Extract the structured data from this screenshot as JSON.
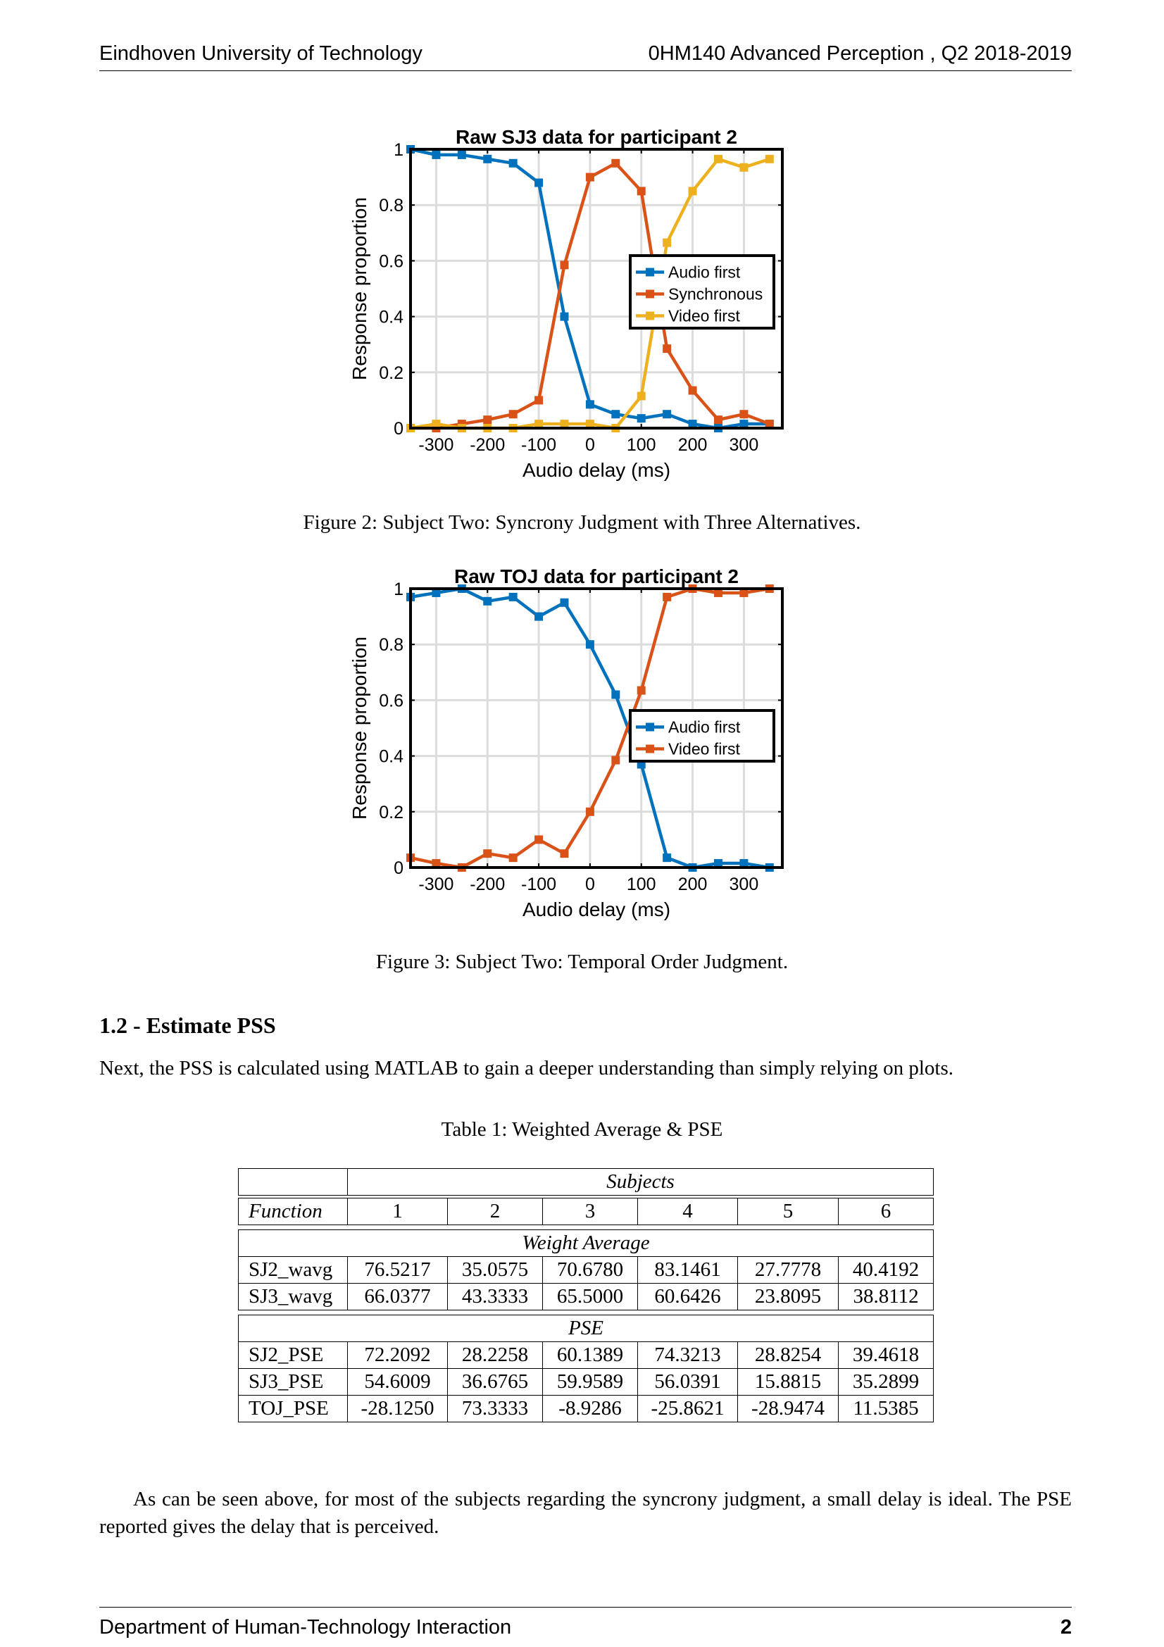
{
  "header": {
    "left": "Eindhoven University of Technology",
    "right": "0HM140 Advanced Perception , Q2 2018-2019"
  },
  "footer": {
    "left": "Department of Human-Technology Interaction",
    "page": "2"
  },
  "figure2_caption": "Figure 2: Subject Two: Syncrony Judgment with Three Alternatives.",
  "figure3_caption": "Figure 3: Subject Two: Temporal Order Judgment.",
  "section": {
    "heading": "1.2 - Estimate PSS",
    "intro": "Next, the PSS is calculated using MATLAB to gain a deeper understanding than simply relying on plots."
  },
  "table": {
    "caption": "Table 1: Weighted Average & PSE",
    "subjects_header": "Subjects",
    "function_header": "Function",
    "subject_cols": [
      "1",
      "2",
      "3",
      "4",
      "5",
      "6"
    ],
    "groups": [
      {
        "title": "Weight Average",
        "rows": [
          {
            "label": "SJ2_wavg",
            "values": [
              "76.5217",
              "35.0575",
              "70.6780",
              "83.1461",
              "27.7778",
              "40.4192"
            ]
          },
          {
            "label": "SJ3_wavg",
            "values": [
              "66.0377",
              "43.3333",
              "65.5000",
              "60.6426",
              "23.8095",
              "38.8112"
            ]
          }
        ]
      },
      {
        "title": "PSE",
        "rows": [
          {
            "label": "SJ2_PSE",
            "values": [
              "72.2092",
              "28.2258",
              "60.1389",
              "74.3213",
              "28.8254",
              "39.4618"
            ]
          },
          {
            "label": "SJ3_PSE",
            "values": [
              "54.6009",
              "36.6765",
              "59.9589",
              "56.0391",
              "15.8815",
              "35.2899"
            ]
          },
          {
            "label": "TOJ_PSE",
            "values": [
              "-28.1250",
              "73.3333",
              "-8.9286",
              "-25.8621",
              "-28.9474",
              "11.5385"
            ]
          }
        ]
      }
    ]
  },
  "conclusion": "As can be seen above, for most of the subjects regarding the syncrony judgment, a small delay is ideal. The PSE reported gives the delay that is perceived.",
  "chart_data": [
    {
      "type": "line",
      "title": "Raw SJ3 data for participant 2",
      "xlabel": "Audio delay (ms)",
      "ylabel": "Response proportion",
      "xlim": [
        -350,
        375
      ],
      "ylim": [
        0,
        1
      ],
      "xticks": [
        -300,
        -200,
        -100,
        0,
        100,
        200,
        300
      ],
      "xtick_labels": [
        "-300",
        "-200",
        "-100",
        "0",
        "100",
        "200",
        "300"
      ],
      "yticks": [
        0,
        0.2,
        0.4,
        0.6,
        0.8,
        1
      ],
      "ytick_labels": [
        "0",
        "0.2",
        "0.4",
        "0.6",
        "0.8",
        "1"
      ],
      "grid": true,
      "legend_position": "center-right",
      "x": [
        -350,
        -300,
        -250,
        -200,
        -150,
        -100,
        -50,
        0,
        50,
        100,
        150,
        200,
        250,
        300,
        350
      ],
      "series": [
        {
          "name": "Audio first",
          "color": "#0072BD",
          "values": [
            1.0,
            0.98,
            0.98,
            0.965,
            0.95,
            0.88,
            0.4,
            0.085,
            0.05,
            0.035,
            0.05,
            0.015,
            0.0,
            0.015,
            0.015
          ]
        },
        {
          "name": "Synchronous",
          "color": "#D95319",
          "values": [
            0.0,
            0.0,
            0.015,
            0.03,
            0.05,
            0.1,
            0.585,
            0.9,
            0.95,
            0.85,
            0.285,
            0.135,
            0.03,
            0.05,
            0.015
          ]
        },
        {
          "name": "Video first",
          "color": "#EDB120",
          "values": [
            0.0,
            0.015,
            0.0,
            0.0,
            0.0,
            0.015,
            0.015,
            0.015,
            0.0,
            0.115,
            0.665,
            0.85,
            0.965,
            0.935,
            0.965
          ]
        }
      ]
    },
    {
      "type": "line",
      "title": "Raw TOJ data for participant 2",
      "xlabel": "Audio delay (ms)",
      "ylabel": "Response proportion",
      "xlim": [
        -350,
        375
      ],
      "ylim": [
        0,
        1
      ],
      "xticks": [
        -300,
        -200,
        -100,
        0,
        100,
        200,
        300
      ],
      "xtick_labels": [
        "-300",
        "-200",
        "-100",
        "0",
        "100",
        "200",
        "300"
      ],
      "yticks": [
        0,
        0.2,
        0.4,
        0.6,
        0.8,
        1
      ],
      "ytick_labels": [
        "0",
        "0.2",
        "0.4",
        "0.6",
        "0.8",
        "1"
      ],
      "grid": true,
      "legend_position": "center-right",
      "x": [
        -350,
        -300,
        -250,
        -200,
        -150,
        -100,
        -50,
        0,
        50,
        100,
        150,
        200,
        250,
        300,
        350
      ],
      "series": [
        {
          "name": "Audio first",
          "color": "#0072BD",
          "values": [
            0.97,
            0.985,
            1.0,
            0.955,
            0.97,
            0.9,
            0.95,
            0.8,
            0.62,
            0.37,
            0.035,
            0.0,
            0.015,
            0.015,
            0.0
          ]
        },
        {
          "name": "Video first",
          "color": "#D95319",
          "values": [
            0.035,
            0.015,
            0.0,
            0.05,
            0.035,
            0.1,
            0.05,
            0.2,
            0.385,
            0.635,
            0.97,
            1.0,
            0.985,
            0.985,
            1.0
          ]
        }
      ]
    }
  ]
}
